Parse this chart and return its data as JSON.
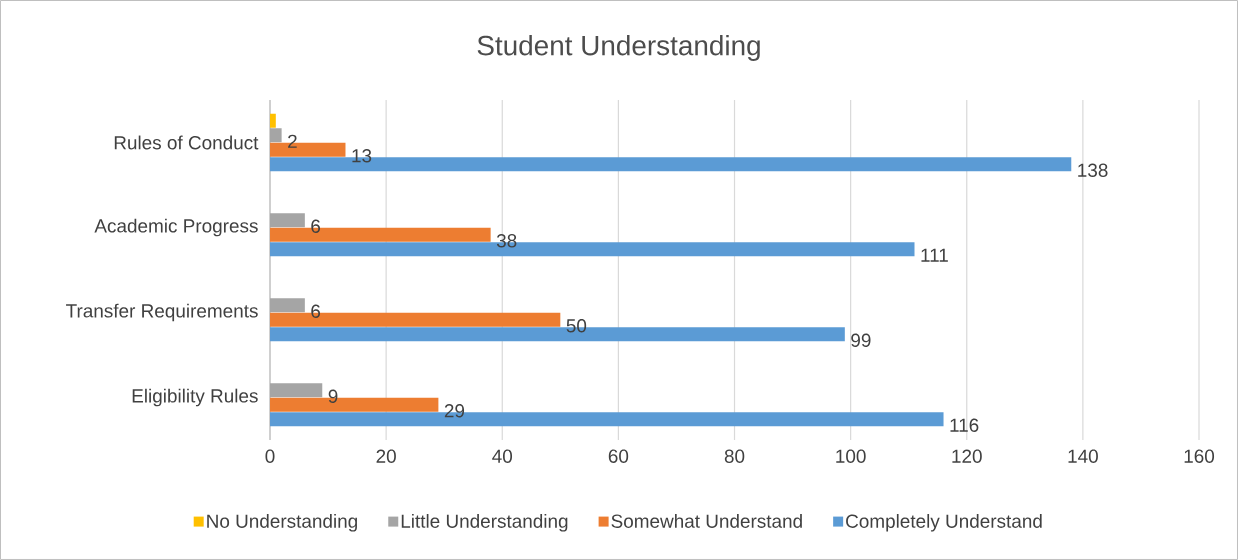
{
  "chart_data": {
    "type": "bar",
    "orientation": "horizontal",
    "title": "Student Understanding",
    "categories": [
      "Rules of Conduct",
      "Academic Progress",
      "Transfer Requirements",
      "Eligibility Rules"
    ],
    "series": [
      {
        "name": "No Understanding",
        "color": "#ffc000",
        "values": [
          1,
          null,
          null,
          null
        ],
        "value_labels": [
          null,
          null,
          null,
          null
        ]
      },
      {
        "name": "Little Understanding",
        "color": "#a5a5a5",
        "values": [
          2,
          6,
          6,
          9
        ],
        "value_labels": [
          "2",
          "6",
          "6",
          "9"
        ]
      },
      {
        "name": "Somewhat Understand",
        "color": "#ed7d31",
        "values": [
          13,
          38,
          50,
          29
        ],
        "value_labels": [
          "13",
          "38",
          "50",
          "29"
        ]
      },
      {
        "name": "Completely Understand",
        "color": "#5b9bd5",
        "values": [
          138,
          111,
          99,
          116
        ],
        "value_labels": [
          "138",
          "111",
          "99",
          "116"
        ]
      }
    ],
    "xlim": [
      0,
      160
    ],
    "xticks": [
      0,
      20,
      40,
      60,
      80,
      100,
      120,
      140,
      160
    ],
    "grid": "x",
    "legend": "bottom"
  }
}
